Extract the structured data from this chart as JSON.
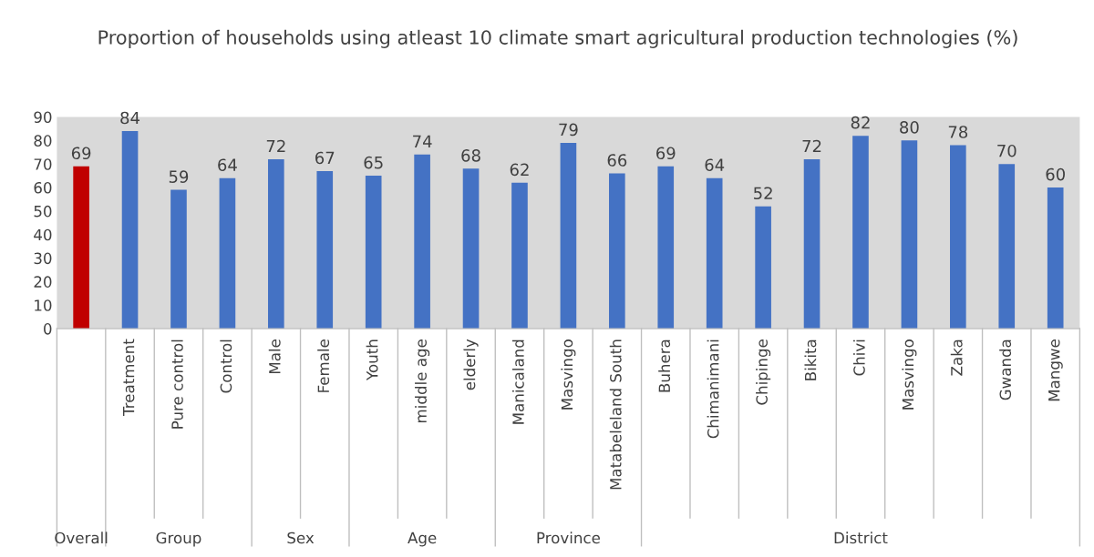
{
  "chart_data": {
    "type": "bar",
    "title": "Proportion of households using atleast 10 climate smart agricultural production technologies (%)",
    "categories": [
      null,
      "Treatment",
      "Pure control",
      "Control",
      "Male",
      "Female",
      "Youth",
      "middle age",
      "elderly",
      "Manicaland",
      "Masvingo",
      "Matabeleland South",
      "Buhera",
      "Chimanimani",
      "Chipinge",
      "Bikita",
      "Chivi",
      "Masvingo",
      "Zaka",
      "Gwanda",
      "Mangwe"
    ],
    "values": [
      69,
      84,
      59,
      64,
      72,
      67,
      65,
      74,
      68,
      62,
      79,
      66,
      69,
      64,
      52,
      72,
      82,
      80,
      78,
      70,
      60
    ],
    "colors": [
      "#c00000",
      "#4472c4",
      "#4472c4",
      "#4472c4",
      "#4472c4",
      "#4472c4",
      "#4472c4",
      "#4472c4",
      "#4472c4",
      "#4472c4",
      "#4472c4",
      "#4472c4",
      "#4472c4",
      "#4472c4",
      "#4472c4",
      "#4472c4",
      "#4472c4",
      "#4472c4",
      "#4472c4",
      "#4472c4",
      "#4472c4"
    ],
    "ylim": [
      0,
      90
    ],
    "yticks": [
      0,
      10,
      20,
      30,
      40,
      50,
      60,
      70,
      80,
      90
    ],
    "data_labels": true,
    "grid": false,
    "annotations": [
      "Overall",
      "Group",
      "Sex",
      "Age",
      "Province",
      "District"
    ]
  }
}
